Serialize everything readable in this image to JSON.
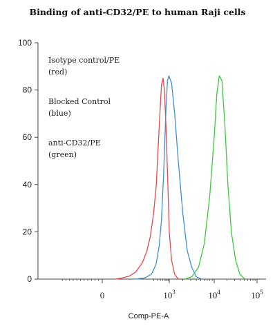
{
  "chart_data": {
    "type": "line",
    "title": "Binding of anti-CD32/PE to human Raji cells",
    "xlabel": "Comp-PE-A",
    "ylabel": "",
    "ylim": [
      0,
      100
    ],
    "y_ticks": [
      "0",
      "20",
      "40",
      "60",
      "80",
      "100"
    ],
    "x_ticks": [
      {
        "pos": 0,
        "base": "0",
        "exp": ""
      },
      {
        "pos": 3,
        "base": "10",
        "exp": "3"
      },
      {
        "pos": 4,
        "base": "10",
        "exp": "4"
      },
      {
        "pos": 5,
        "base": "10",
        "exp": "5"
      }
    ],
    "grid": false,
    "annotations": [
      {
        "line1": "Isotype control/PE",
        "line2": "(red)"
      },
      {
        "line1": "Blocked Control",
        "line2": "(blue)"
      },
      {
        "line1": "anti-CD32/PE",
        "line2": "(green)"
      }
    ],
    "series": [
      {
        "color": "#e8474a",
        "x": [
          0.6,
          0.9,
          1.2,
          1.5,
          1.8,
          2.0,
          2.15,
          2.3,
          2.42,
          2.5,
          2.58,
          2.65,
          2.72,
          2.78,
          2.85,
          2.92,
          3.0,
          3.05,
          3.12,
          3.2
        ],
        "y": [
          0,
          0.5,
          1.2,
          3,
          7,
          12,
          18,
          28,
          40,
          55,
          70,
          82,
          85,
          80,
          65,
          45,
          20,
          8,
          2,
          0
        ]
      },
      {
        "color": "#3d8fd6",
        "x": [
          1.5,
          1.9,
          2.2,
          2.4,
          2.55,
          2.65,
          2.75,
          2.85,
          2.92,
          2.98,
          3.05,
          3.12,
          3.2,
          3.3,
          3.4,
          3.5,
          3.6,
          3.72
        ],
        "y": [
          0,
          0.5,
          2,
          6,
          14,
          25,
          45,
          72,
          84,
          86,
          83,
          70,
          50,
          28,
          12,
          5,
          1,
          0
        ]
      },
      {
        "color": "#3cc83c",
        "x": [
          3.35,
          3.5,
          3.65,
          3.78,
          3.9,
          4.0,
          4.06,
          4.12,
          4.18,
          4.25,
          4.32,
          4.4,
          4.5,
          4.6,
          4.72
        ],
        "y": [
          0,
          1,
          5,
          15,
          35,
          60,
          78,
          86,
          84,
          65,
          40,
          20,
          8,
          2,
          0
        ]
      }
    ]
  }
}
